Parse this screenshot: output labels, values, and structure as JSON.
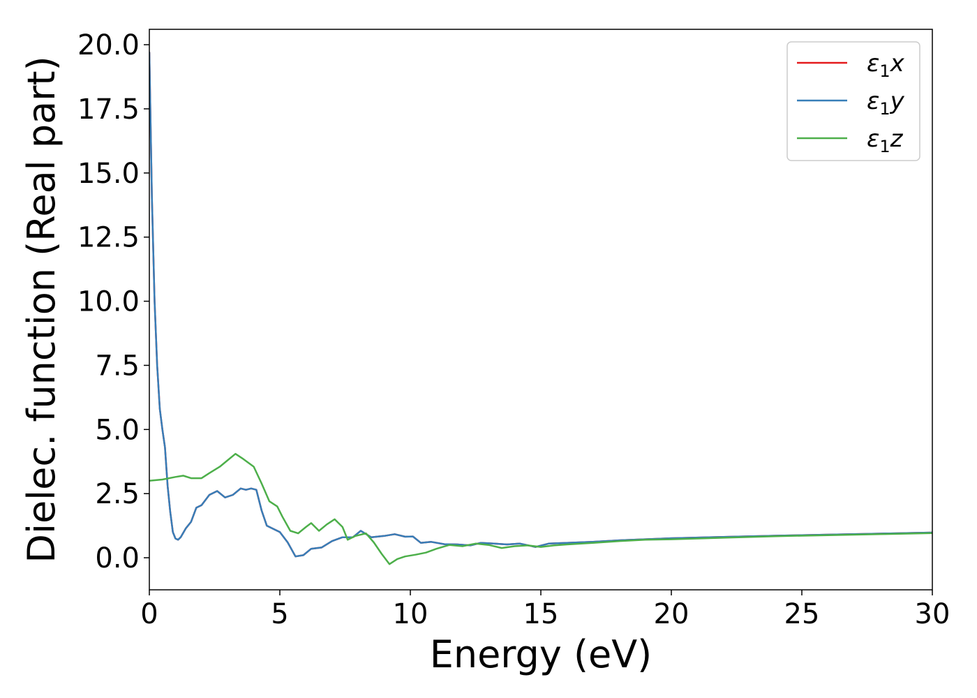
{
  "chart_data": {
    "type": "line",
    "xlabel": "Energy (eV)",
    "ylabel": "Dielec. function (Real part)",
    "xlim": [
      0,
      30
    ],
    "ylim": [
      -1.25,
      20.6
    ],
    "xticks": [
      0,
      5,
      10,
      15,
      20,
      25,
      30
    ],
    "xtick_labels": [
      "0",
      "5",
      "10",
      "15",
      "20",
      "25",
      "30"
    ],
    "yticks": [
      0,
      2.5,
      5,
      7.5,
      10,
      12.5,
      15,
      17.5,
      20
    ],
    "ytick_labels": [
      "0.0",
      "2.5",
      "5.0",
      "7.5",
      "10.0",
      "12.5",
      "15.0",
      "17.5",
      "20.0"
    ],
    "grid": false,
    "legend_position": "top-right",
    "series": [
      {
        "name": "ε1x",
        "base": "ε",
        "sub": "1",
        "comp": "x",
        "color": "#e41a1c",
        "x": [
          0,
          0.1,
          0.2,
          0.3,
          0.4,
          0.5,
          0.6,
          0.7,
          0.8,
          0.9,
          1.0,
          1.1,
          1.2,
          1.4,
          1.6,
          1.8,
          2.0,
          2.3,
          2.6,
          2.9,
          3.2,
          3.5,
          3.7,
          3.9,
          4.1,
          4.3,
          4.5,
          4.8,
          5.0,
          5.3,
          5.6,
          5.9,
          6.2,
          6.6,
          7.0,
          7.4,
          7.8,
          8.1,
          8.5,
          9.0,
          9.4,
          9.8,
          10.1,
          10.4,
          10.8,
          11.3,
          11.8,
          12.3,
          12.7,
          13.2,
          13.7,
          14.2,
          14.8,
          15.3,
          16,
          17,
          18,
          19,
          20,
          22,
          24,
          26,
          28,
          30
        ],
        "y": [
          19.7,
          14.0,
          10.0,
          7.5,
          5.8,
          5.0,
          4.3,
          2.8,
          1.8,
          1.0,
          0.75,
          0.7,
          0.8,
          1.15,
          1.4,
          1.95,
          2.05,
          2.45,
          2.6,
          2.35,
          2.45,
          2.7,
          2.65,
          2.7,
          2.65,
          1.85,
          1.25,
          1.1,
          1.0,
          0.6,
          0.05,
          0.1,
          0.35,
          0.4,
          0.65,
          0.8,
          0.8,
          1.05,
          0.8,
          0.85,
          0.92,
          0.82,
          0.83,
          0.58,
          0.62,
          0.53,
          0.52,
          0.48,
          0.58,
          0.55,
          0.52,
          0.55,
          0.42,
          0.55,
          0.58,
          0.62,
          0.68,
          0.72,
          0.76,
          0.81,
          0.86,
          0.9,
          0.94,
          0.98
        ]
      },
      {
        "name": "ε1y",
        "base": "ε",
        "sub": "1",
        "comp": "y",
        "color": "#377eb8",
        "x": [
          0,
          0.1,
          0.2,
          0.3,
          0.4,
          0.5,
          0.6,
          0.7,
          0.8,
          0.9,
          1.0,
          1.1,
          1.2,
          1.4,
          1.6,
          1.8,
          2.0,
          2.3,
          2.6,
          2.9,
          3.2,
          3.5,
          3.7,
          3.9,
          4.1,
          4.3,
          4.5,
          4.8,
          5.0,
          5.3,
          5.6,
          5.9,
          6.2,
          6.6,
          7.0,
          7.4,
          7.8,
          8.1,
          8.5,
          9.0,
          9.4,
          9.8,
          10.1,
          10.4,
          10.8,
          11.3,
          11.8,
          12.3,
          12.7,
          13.2,
          13.7,
          14.2,
          14.8,
          15.3,
          16,
          17,
          18,
          19,
          20,
          22,
          24,
          26,
          28,
          30
        ],
        "y": [
          19.7,
          14.0,
          10.0,
          7.5,
          5.8,
          5.0,
          4.3,
          2.8,
          1.8,
          1.0,
          0.75,
          0.7,
          0.8,
          1.15,
          1.4,
          1.95,
          2.05,
          2.45,
          2.6,
          2.35,
          2.45,
          2.7,
          2.65,
          2.7,
          2.65,
          1.85,
          1.25,
          1.1,
          1.0,
          0.6,
          0.05,
          0.1,
          0.35,
          0.4,
          0.65,
          0.8,
          0.8,
          1.05,
          0.8,
          0.85,
          0.92,
          0.82,
          0.83,
          0.58,
          0.62,
          0.53,
          0.52,
          0.48,
          0.58,
          0.55,
          0.52,
          0.55,
          0.42,
          0.55,
          0.58,
          0.62,
          0.68,
          0.72,
          0.76,
          0.81,
          0.86,
          0.9,
          0.94,
          0.98
        ]
      },
      {
        "name": "ε1z",
        "base": "ε",
        "sub": "1",
        "comp": "z",
        "color": "#4daf4a",
        "x": [
          0,
          0.5,
          1.0,
          1.3,
          1.6,
          2.0,
          2.3,
          2.7,
          3.0,
          3.3,
          3.6,
          3.8,
          4.0,
          4.3,
          4.6,
          4.9,
          5.1,
          5.4,
          5.7,
          6.0,
          6.2,
          6.5,
          6.8,
          7.1,
          7.4,
          7.6,
          7.9,
          8.3,
          8.6,
          8.9,
          9.2,
          9.5,
          9.8,
          10.2,
          10.6,
          11.0,
          11.5,
          12.0,
          12.5,
          13.0,
          13.5,
          14.0,
          14.5,
          15.0,
          15.5,
          16,
          17,
          18,
          19,
          20,
          22,
          24,
          26,
          28,
          30
        ],
        "y": [
          3.0,
          3.05,
          3.15,
          3.2,
          3.1,
          3.1,
          3.3,
          3.55,
          3.8,
          4.05,
          3.85,
          3.7,
          3.55,
          2.9,
          2.2,
          2.0,
          1.6,
          1.05,
          0.95,
          1.2,
          1.35,
          1.05,
          1.3,
          1.5,
          1.2,
          0.7,
          0.85,
          0.95,
          0.6,
          0.15,
          -0.25,
          -0.05,
          0.05,
          0.12,
          0.2,
          0.35,
          0.5,
          0.45,
          0.55,
          0.5,
          0.38,
          0.45,
          0.48,
          0.42,
          0.48,
          0.52,
          0.58,
          0.65,
          0.7,
          0.72,
          0.78,
          0.84,
          0.88,
          0.92,
          0.96
        ]
      }
    ]
  }
}
